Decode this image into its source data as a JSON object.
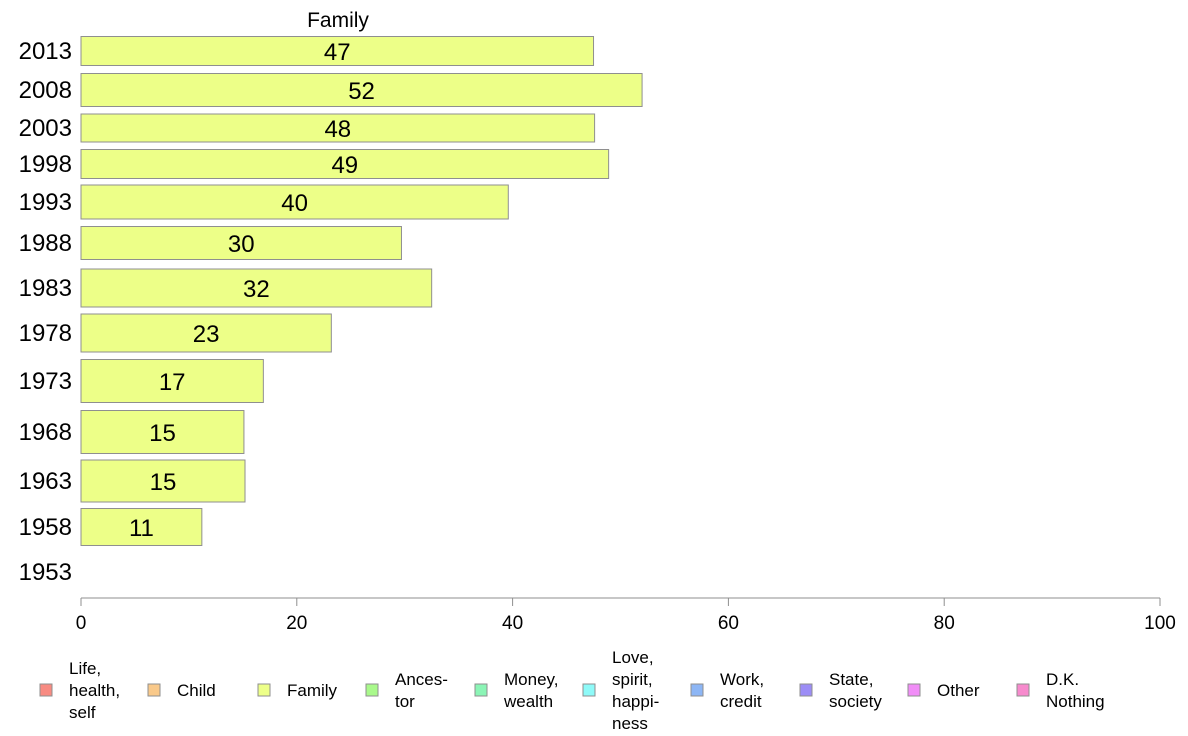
{
  "chart_data": {
    "type": "bar",
    "orientation": "horizontal",
    "title": "Family",
    "xlabel": "",
    "ylabel": "",
    "xlim": [
      0,
      100
    ],
    "x_ticks": [
      0,
      20,
      40,
      60,
      80,
      100
    ],
    "grid": false,
    "legend_position": "bottom",
    "categories": [
      "2013",
      "2008",
      "2003",
      "1998",
      "1993",
      "1988",
      "1983",
      "1978",
      "1973",
      "1968",
      "1963",
      "1958",
      "1953"
    ],
    "series": [
      {
        "name": "Family",
        "color": "#EDFF88",
        "values": [
          47.5,
          52,
          47.6,
          48.9,
          39.6,
          29.7,
          32.5,
          23.2,
          16.9,
          15.1,
          15.2,
          11.2,
          null
        ],
        "labels": [
          "47",
          "52",
          "48",
          "49",
          "40",
          "30",
          "32",
          "23",
          "17",
          "15",
          "15",
          "11",
          ""
        ]
      }
    ],
    "legend": [
      {
        "lines": [
          "Life,",
          "health,",
          "self"
        ],
        "color": "#F88B82"
      },
      {
        "lines": [
          "Child"
        ],
        "color": "#F9C98A"
      },
      {
        "lines": [
          "Family"
        ],
        "color": "#EDFF88"
      },
      {
        "lines": [
          "Ances-",
          "tor"
        ],
        "color": "#A9F98B"
      },
      {
        "lines": [
          "Money,",
          "wealth"
        ],
        "color": "#8BF5B6"
      },
      {
        "lines": [
          "Love,",
          "spirit,",
          "happi-",
          "ness"
        ],
        "color": "#8EFAF8"
      },
      {
        "lines": [
          "Work,",
          "credit"
        ],
        "color": "#8DB6F5"
      },
      {
        "lines": [
          "State,",
          "society"
        ],
        "color": "#9C8DF6"
      },
      {
        "lines": [
          "Other"
        ],
        "color": "#F18DF7"
      },
      {
        "lines": [
          "D.K.",
          "Nothing"
        ],
        "color": "#F78ACD"
      }
    ]
  }
}
